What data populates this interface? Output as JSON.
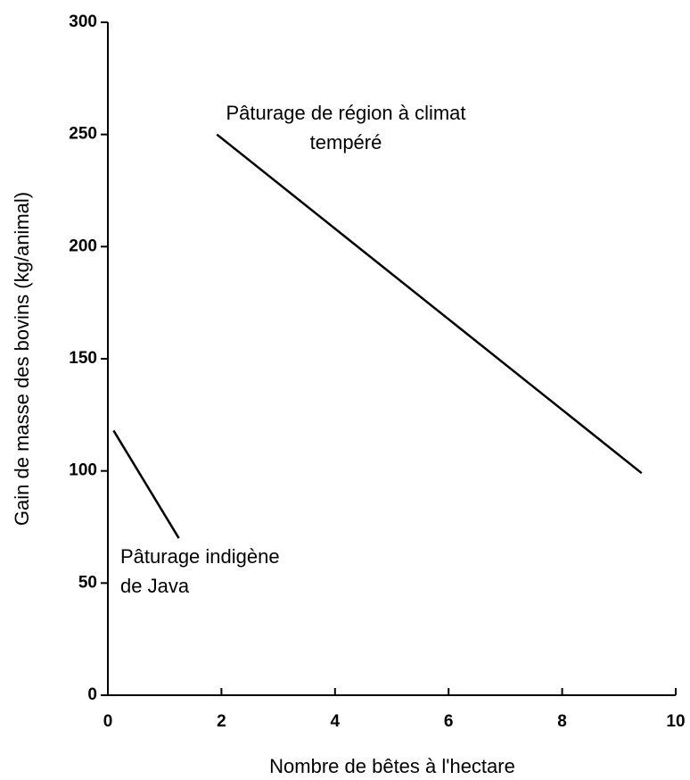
{
  "chart_data": {
    "type": "line",
    "xlabel": "Nombre de bêtes à l'hectare",
    "ylabel": "Gain de masse des bovins (kg/animal)",
    "series": [
      {
        "label_lines": [
          "Pâturage de région à climat",
          "tempéré"
        ],
        "color": "#000000",
        "x": [
          1.92,
          9.4
        ],
        "values": [
          250,
          99
        ]
      },
      {
        "label_lines": [
          "Pâturage indigène",
          "de Java"
        ],
        "color": "#000000",
        "x": [
          0.1,
          1.25
        ],
        "values": [
          118,
          70
        ]
      }
    ],
    "xlim": [
      0,
      10
    ],
    "xticks": [
      0,
      2,
      4,
      6,
      8,
      10
    ],
    "ylim": [
      0,
      300
    ],
    "yticks": [
      0,
      50,
      100,
      150,
      200,
      250,
      300
    ],
    "grid": false
  }
}
